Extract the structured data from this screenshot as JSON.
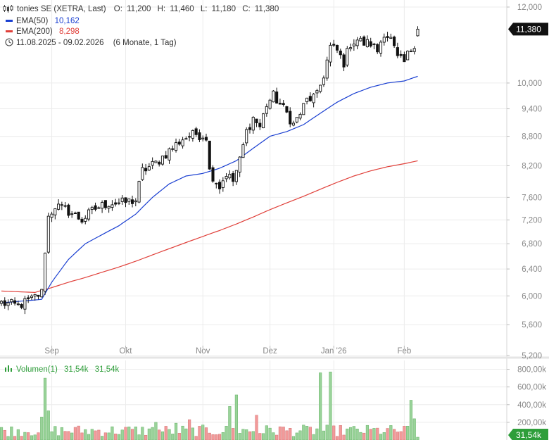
{
  "header": {
    "title": "tonies SE (XETRA, Last)",
    "ohlc": [
      {
        "label": "O:",
        "value": "11,200"
      },
      {
        "label": "H:",
        "value": "11,460"
      },
      {
        "label": "L:",
        "value": "11,180"
      },
      {
        "label": "C:",
        "value": "11,380"
      }
    ],
    "ema50_label": "EMA(50)",
    "ema50_value": "10,162",
    "ema200_label": "EMA(200)",
    "ema200_value": "8,298",
    "range_text": "11.08.2025 - 09.02.2026",
    "range_detail": "(6 Monate, 1 Tag)",
    "last_price_tag": "11,380"
  },
  "volume_header": {
    "label": "Volumen(1)",
    "value1": "31,54k",
    "value2": "31,54k",
    "last_volume_tag": "31,54k"
  },
  "colors": {
    "ema50": "#1a3fd1",
    "ema200": "#e0403a",
    "vol_up": "#9ad39a",
    "vol_down": "#f29a9a",
    "tag_bg": "#111111",
    "vol_tag_bg": "#2e9e3a"
  },
  "chart_data": {
    "type": "candlestick",
    "price_axis": {
      "ticks": [
        5.2,
        5.6,
        6.0,
        6.4,
        6.8,
        7.2,
        7.6,
        8.2,
        8.8,
        9.4,
        10.0,
        12.0
      ],
      "tick_labels": [
        "5,200",
        "5,600",
        "6,000",
        "6,400",
        "6,800",
        "7,200",
        "7,600",
        "8,200",
        "8,800",
        "9,400",
        "10,000",
        "12,000"
      ],
      "range": [
        5.2,
        12.0
      ]
    },
    "x_axis": {
      "labels": [
        {
          "text": "Sep",
          "index": 15
        },
        {
          "text": "Okt",
          "index": 37
        },
        {
          "text": "Nov",
          "index": 60
        },
        {
          "text": "Dez",
          "index": 80
        },
        {
          "text": "Jan '26",
          "index": 99
        },
        {
          "text": "Feb",
          "index": 120
        }
      ],
      "total_sessions": 131
    },
    "volume_axis": {
      "ticks": [
        200000,
        400000,
        600000,
        800000
      ],
      "tick_labels": [
        "200,00k",
        "400,00k",
        "600,00k",
        "800,00k"
      ],
      "max": 900000
    },
    "anchors": {
      "close": [
        [
          0,
          5.9
        ],
        [
          5,
          5.86
        ],
        [
          9,
          5.95
        ],
        [
          12,
          6.05
        ],
        [
          13,
          6.7
        ],
        [
          14,
          7.25
        ],
        [
          16,
          7.45
        ],
        [
          18,
          7.4
        ],
        [
          20,
          7.35
        ],
        [
          24,
          7.2
        ],
        [
          28,
          7.4
        ],
        [
          32,
          7.5
        ],
        [
          36,
          7.5
        ],
        [
          40,
          7.55
        ],
        [
          42,
          8.1
        ],
        [
          46,
          8.25
        ],
        [
          50,
          8.5
        ],
        [
          54,
          8.75
        ],
        [
          58,
          8.85
        ],
        [
          61,
          8.8
        ],
        [
          62,
          8.1
        ],
        [
          65,
          7.8
        ],
        [
          67,
          8.05
        ],
        [
          69,
          7.9
        ],
        [
          71,
          8.3
        ],
        [
          73,
          8.9
        ],
        [
          75,
          9.2
        ],
        [
          77,
          9.0
        ],
        [
          79,
          9.5
        ],
        [
          81,
          9.7
        ],
        [
          83,
          9.5
        ],
        [
          85,
          9.3
        ],
        [
          87,
          9.05
        ],
        [
          89,
          9.3
        ],
        [
          91,
          9.6
        ],
        [
          94,
          9.7
        ],
        [
          96,
          10.2
        ],
        [
          98,
          10.9
        ],
        [
          100,
          10.8
        ],
        [
          102,
          10.5
        ],
        [
          104,
          11.0
        ],
        [
          106,
          11.1
        ],
        [
          108,
          11.0
        ],
        [
          110,
          11.0
        ],
        [
          112,
          10.8
        ],
        [
          114,
          11.3
        ],
        [
          116,
          11.1
        ],
        [
          118,
          10.6
        ],
        [
          120,
          10.5
        ],
        [
          121,
          10.7
        ],
        [
          123,
          11.0
        ],
        [
          124,
          11.38
        ]
      ],
      "ema50": [
        [
          0,
          5.9
        ],
        [
          12,
          5.95
        ],
        [
          15,
          6.2
        ],
        [
          20,
          6.55
        ],
        [
          25,
          6.8
        ],
        [
          30,
          6.95
        ],
        [
          35,
          7.1
        ],
        [
          40,
          7.3
        ],
        [
          45,
          7.6
        ],
        [
          50,
          7.85
        ],
        [
          55,
          8.0
        ],
        [
          60,
          8.05
        ],
        [
          65,
          8.15
        ],
        [
          70,
          8.3
        ],
        [
          75,
          8.55
        ],
        [
          80,
          8.8
        ],
        [
          85,
          8.9
        ],
        [
          90,
          9.05
        ],
        [
          95,
          9.3
        ],
        [
          100,
          9.55
        ],
        [
          105,
          9.75
        ],
        [
          110,
          9.9
        ],
        [
          115,
          10.0
        ],
        [
          120,
          10.05
        ],
        [
          124,
          10.162
        ]
      ],
      "ema200": [
        [
          0,
          6.07
        ],
        [
          10,
          6.05
        ],
        [
          12,
          6.08
        ],
        [
          15,
          6.12
        ],
        [
          20,
          6.2
        ],
        [
          25,
          6.27
        ],
        [
          30,
          6.35
        ],
        [
          35,
          6.43
        ],
        [
          40,
          6.52
        ],
        [
          45,
          6.62
        ],
        [
          50,
          6.72
        ],
        [
          55,
          6.82
        ],
        [
          60,
          6.92
        ],
        [
          65,
          7.02
        ],
        [
          70,
          7.13
        ],
        [
          75,
          7.25
        ],
        [
          80,
          7.38
        ],
        [
          85,
          7.5
        ],
        [
          90,
          7.62
        ],
        [
          95,
          7.75
        ],
        [
          100,
          7.88
        ],
        [
          105,
          8.0
        ],
        [
          110,
          8.1
        ],
        [
          115,
          8.18
        ],
        [
          120,
          8.24
        ],
        [
          124,
          8.298
        ]
      ],
      "volume_spikes": [
        [
          13,
          700000
        ],
        [
          14,
          330000
        ],
        [
          12,
          260000
        ],
        [
          46,
          200000
        ],
        [
          52,
          190000
        ],
        [
          56,
          230000
        ],
        [
          68,
          380000
        ],
        [
          70,
          510000
        ],
        [
          76,
          280000
        ],
        [
          83,
          150000
        ],
        [
          95,
          760000
        ],
        [
          98,
          770000
        ],
        [
          122,
          450000
        ],
        [
          123,
          240000
        ],
        [
          124,
          31540
        ]
      ]
    }
  }
}
